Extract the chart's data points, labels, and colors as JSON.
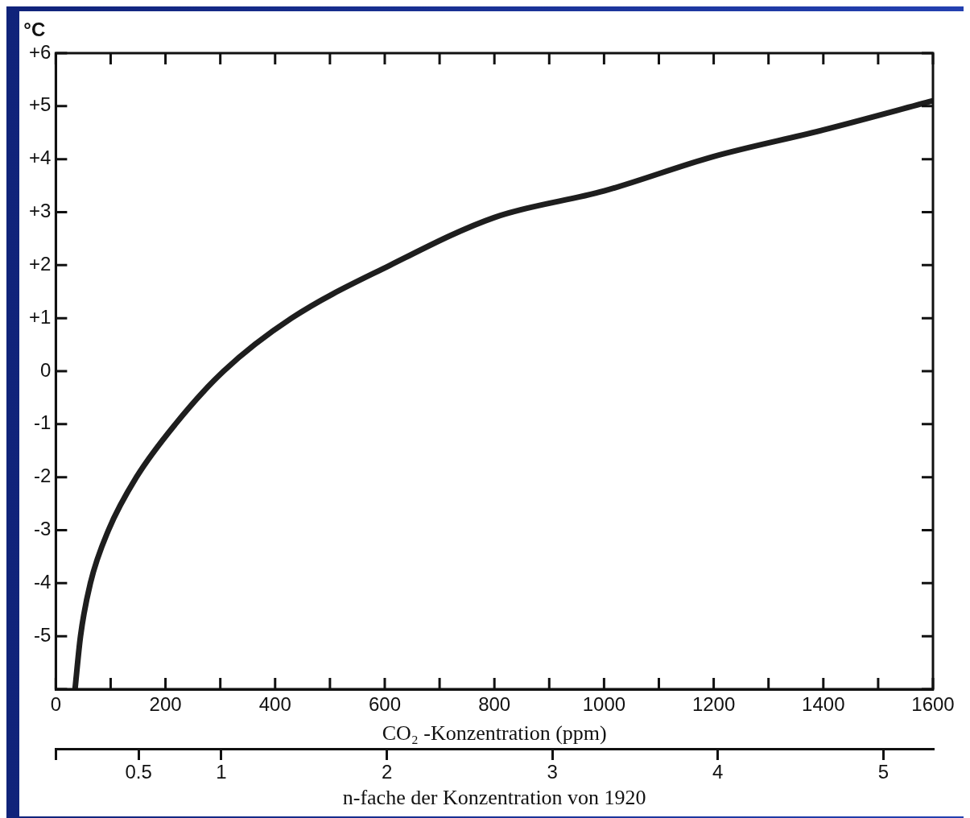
{
  "chart_data": {
    "type": "line",
    "xlabel": "CO₂ -Konzentration (ppm)",
    "ylabel": "°C",
    "x2label": "n-fache der Konzentration von 1920",
    "series": [
      {
        "color": "#1e1e1e",
        "x": [
          35,
          45,
          63,
          96,
          147,
          218,
          306,
          430,
          610,
          800,
          1000,
          1200,
          1400,
          1600
        ],
        "values": [
          -6,
          -5,
          -4,
          -3,
          -2,
          -1,
          0,
          1,
          2,
          2.9,
          3.4,
          4.05,
          4.55,
          5.1
        ]
      }
    ],
    "xlim": [
      0,
      1600
    ],
    "xticks": [
      0,
      {
        "value": 100,
        "label": null
      },
      200,
      {
        "value": 300,
        "label": null
      },
      400,
      {
        "value": 500,
        "label": null
      },
      600,
      {
        "value": 700,
        "label": null
      },
      800,
      {
        "value": 900,
        "label": null
      },
      1000,
      {
        "value": 1100,
        "label": null
      },
      1200,
      {
        "value": 1300,
        "label": null
      },
      1400,
      {
        "value": 1500,
        "label": null
      },
      1600
    ],
    "ylim": [
      -6,
      6
    ],
    "yticks": [
      {
        "value": 6,
        "label": "+6"
      },
      {
        "value": 5,
        "label": "+5"
      },
      {
        "value": 4,
        "label": "+4"
      },
      {
        "value": 3,
        "label": "+3"
      },
      {
        "value": 2,
        "label": "+2"
      },
      {
        "value": 1,
        "label": "+1"
      },
      0,
      -1,
      -2,
      -3,
      -4,
      -5,
      {
        "value": -6,
        "label": null
      }
    ],
    "x2lim": [
      0,
      5.3
    ],
    "x2ticks": [
      {
        "value": 0,
        "label": null
      },
      0.5,
      1,
      2,
      3,
      4,
      5
    ],
    "marker": "none",
    "line_style": "solid",
    "legend": false
  }
}
